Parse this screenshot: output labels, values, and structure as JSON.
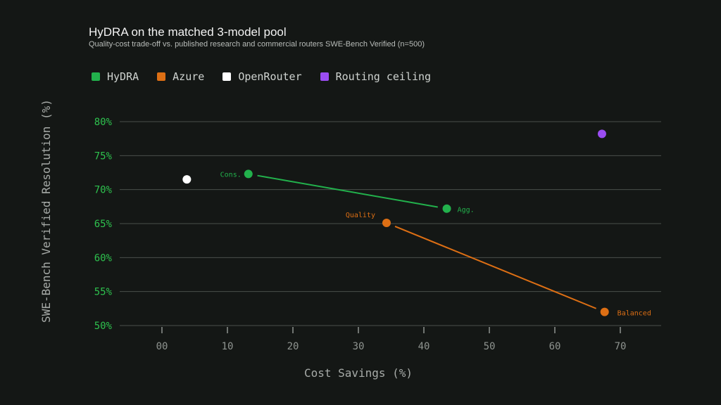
{
  "header": {
    "title": "HyDRA on the matched 3-model pool",
    "subtitle": "Quality-cost trade-off vs. published research and commercial routers SWE-Bench Verified (n=500)"
  },
  "colors": {
    "background": "#141715",
    "grid": "#4a4f4b",
    "ytick": "#2ec14e",
    "xtick": "#8f9490"
  },
  "chart_data": {
    "type": "scatter",
    "title": "HyDRA on the matched 3-model pool",
    "subtitle": "Quality-cost trade-off vs. published research and commercial routers SWE-Bench Verified (n=500)",
    "xlabel": "Cost Savings (%)",
    "ylabel": "SWE-Bench Verified Resolution (%)",
    "xlim": [
      -6,
      76
    ],
    "ylim": [
      50,
      80
    ],
    "x_ticks": [
      0,
      10,
      20,
      30,
      40,
      50,
      60,
      70
    ],
    "x_tick_labels": [
      "00",
      "10",
      "20",
      "30",
      "40",
      "50",
      "60",
      "70"
    ],
    "y_ticks": [
      50,
      55,
      60,
      65,
      70,
      75,
      80
    ],
    "y_tick_labels": [
      "50%",
      "55%",
      "60%",
      "65%",
      "70%",
      "75%",
      "80%"
    ],
    "grid": "horizontal",
    "legend": "top-left",
    "series": [
      {
        "name": "HyDRA",
        "color": "#22b14c",
        "connected": true,
        "points": [
          {
            "x": 13.2,
            "y": 72.3,
            "label": "Cons."
          },
          {
            "x": 43.5,
            "y": 67.2,
            "label": "Agg."
          }
        ]
      },
      {
        "name": "Azure",
        "color": "#dd6f14",
        "connected": true,
        "points": [
          {
            "x": 34.3,
            "y": 65.1,
            "label": "Quality"
          },
          {
            "x": 67.6,
            "y": 52.0,
            "label": "Balanced"
          }
        ]
      },
      {
        "name": "OpenRouter",
        "color": "#ffffff",
        "connected": false,
        "points": [
          {
            "x": 3.8,
            "y": 71.5,
            "label": ""
          }
        ]
      },
      {
        "name": "Routing ceiling",
        "color": "#9b4df2",
        "connected": false,
        "points": [
          {
            "x": 67.2,
            "y": 78.2,
            "label": ""
          }
        ]
      }
    ]
  }
}
